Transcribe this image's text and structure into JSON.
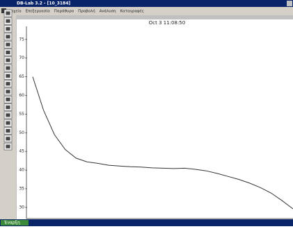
{
  "window": {
    "title": "DB-Lab 3.2 - [10_3184]",
    "menu": [
      "Αρχείο",
      "Επεξεργασία",
      "Παράθυρο",
      "Προβολή",
      "Ανάλυση",
      "Καταγραφές"
    ]
  },
  "taskbar": {
    "start": "Έναρξη"
  },
  "chart_data": {
    "type": "line",
    "title": "Oct 3 11:08:50",
    "series": [
      {
        "color": "#333333",
        "values": [
          65,
          56,
          49.5,
          45.5,
          43.2,
          42.2,
          41.8,
          41.3,
          41.1,
          40.9,
          40.8,
          40.6,
          40.5,
          40.4,
          40.5,
          40.2,
          39.8,
          39.1,
          38.3,
          37.5,
          36.5,
          35.3,
          33.8,
          31.8,
          29.6
        ]
      }
    ],
    "ylim": [
      27,
      78.5
    ],
    "yticks": [
      30,
      35,
      40,
      45,
      50,
      55,
      60,
      65,
      70,
      75
    ]
  }
}
